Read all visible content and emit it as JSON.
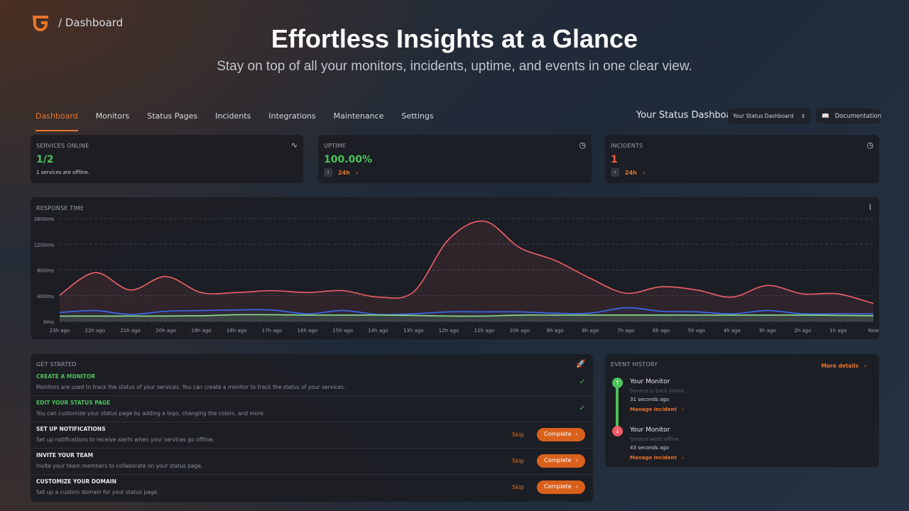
{
  "header": {
    "breadcrumb": "/ Dashboard",
    "title": "Effortless Insights at a Glance",
    "subtitle": "Stay on top of all your monitors, incidents, uptime, and events in one clear view."
  },
  "tabs": [
    {
      "label": "Dashboard",
      "active": true
    },
    {
      "label": "Monitors"
    },
    {
      "label": "Status Pages"
    },
    {
      "label": "Incidents"
    },
    {
      "label": "Integrations"
    },
    {
      "label": "Maintenance"
    },
    {
      "label": "Settings"
    }
  ],
  "toolbar": {
    "dashboard_title": "Your Status Dashboard",
    "select_value": "Your Status Dashboard",
    "docs_label": "Documentation"
  },
  "cards": {
    "services": {
      "label": "SERVICES ONLINE",
      "value": "1/2",
      "note": "1 services are offline."
    },
    "uptime": {
      "label": "UPTIME",
      "value": "100.00%",
      "range": "24h"
    },
    "incidents": {
      "label": "INCIDENTS",
      "value": "1",
      "range": "24h"
    }
  },
  "colors": {
    "accent": "#e8742c",
    "green": "#4cc25a",
    "red": "#ef5a4a",
    "blue": "#3b6cf0"
  },
  "chart_data": {
    "type": "line",
    "title": "RESPONSE TIME",
    "ylim": [
      0,
      1600
    ],
    "yticks": [
      "0ms",
      "400ms",
      "800ms",
      "1200ms",
      "1600ms"
    ],
    "ytick_values": [
      0,
      400,
      800,
      1200,
      1600
    ],
    "categories": [
      "23h ago",
      "22h ago",
      "21h ago",
      "20h ago",
      "19h ago",
      "18h ago",
      "17h ago",
      "16h ago",
      "15h ago",
      "14h ago",
      "13h ago",
      "12h ago",
      "11h ago",
      "10h ago",
      "9h ago",
      "8h ago",
      "7h ago",
      "6h ago",
      "5h ago",
      "4h ago",
      "3h ago",
      "2h ago",
      "1h ago",
      "Now"
    ],
    "series": [
      {
        "name": "red",
        "color": "#f0606a",
        "values": [
          410,
          760,
          490,
          700,
          450,
          450,
          480,
          450,
          480,
          380,
          460,
          1280,
          1560,
          1150,
          950,
          670,
          440,
          540,
          490,
          380,
          560,
          430,
          430,
          280
        ]
      },
      {
        "name": "blue",
        "color": "#3b6cf0",
        "values": [
          140,
          170,
          110,
          160,
          170,
          180,
          180,
          120,
          170,
          110,
          120,
          150,
          150,
          150,
          130,
          130,
          215,
          160,
          150,
          120,
          170,
          120,
          120,
          120
        ]
      },
      {
        "name": "green",
        "color": "#8fe08f",
        "values": [
          85,
          85,
          85,
          85,
          90,
          105,
          105,
          100,
          100,
          100,
          95,
          85,
          85,
          100,
          100,
          100,
          100,
          100,
          100,
          100,
          100,
          100,
          95,
          90
        ]
      }
    ]
  },
  "get_started": {
    "title": "GET STARTED",
    "skip": "Skip",
    "complete": "Complete",
    "items": [
      {
        "title": "CREATE A MONITOR",
        "desc": "Monitors are used to track the status of your services. You can create a monitor to track the status of your services.",
        "done": true
      },
      {
        "title": "EDIT YOUR STATUS PAGE",
        "desc": "You can customize your status page by adding a logo, changing the colors, and more.",
        "done": true
      },
      {
        "title": "SET UP NOTIFICATIONS",
        "desc": "Set up notifications to receive alerts when your services go offline.",
        "done": false
      },
      {
        "title": "INVITE YOUR TEAM",
        "desc": "Invite your team members to collaborate on your status page.",
        "done": false
      },
      {
        "title": "CUSTOMIZE YOUR DOMAIN",
        "desc": "Set up a custom domain for your status page.",
        "done": false
      }
    ]
  },
  "events": {
    "title": "EVENT HISTORY",
    "more": "More details",
    "items": [
      {
        "name": "Your Monitor",
        "status": "Service is back online",
        "time": "31 seconds ago",
        "action": "Manage Incident"
      },
      {
        "name": "Your Monitor",
        "status": "Service went offline",
        "time": "43 seconds ago",
        "action": "Manage Incident"
      }
    ]
  }
}
